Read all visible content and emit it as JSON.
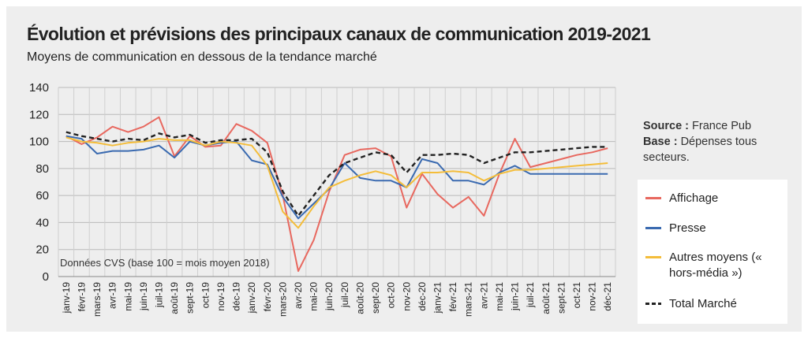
{
  "header": {
    "title": "Évolution et prévisions des principaux canaux de communication 2019-2021",
    "subtitle": "Moyens de communication en dessous de la tendance marché"
  },
  "source": {
    "source_label": "Source :",
    "source_value": "France Pub",
    "base_label": "Base :",
    "base_value": "Dépenses tous secteurs."
  },
  "chart_data": {
    "type": "line",
    "note": "Données CVS (base 100 = mois moyen 2018)",
    "ylim": [
      0,
      140
    ],
    "yticks": [
      0,
      20,
      40,
      60,
      80,
      100,
      120,
      140
    ],
    "grid": true,
    "legend_position": "right",
    "categories": [
      "janv-19",
      "févr-19",
      "mars-19",
      "avr-19",
      "mai-19",
      "juin-19",
      "juil-19",
      "août-19",
      "sept-19",
      "oct-19",
      "nov-19",
      "déc-19",
      "janv-20",
      "févr-20",
      "mars-20",
      "avr-20",
      "mai-20",
      "juin-20",
      "juil-20",
      "août-20",
      "sept-20",
      "oct-20",
      "nov-20",
      "déc-20",
      "janv-21",
      "févr-21",
      "mars-21",
      "avr-21",
      "mai-21",
      "juin-21",
      "juil-21",
      "août-21",
      "sept-21",
      "oct-21",
      "nov-21",
      "déc-21"
    ],
    "series": [
      {
        "name": "Affichage",
        "color": "#e8685f",
        "style": "solid",
        "values": [
          104,
          98,
          103,
          111,
          107,
          111,
          118,
          89,
          104,
          96,
          97,
          113,
          108,
          99,
          60,
          4,
          27,
          63,
          90,
          94,
          95,
          89,
          51,
          76,
          61,
          51,
          59,
          45,
          76,
          102,
          81,
          84,
          87,
          90,
          92,
          95
        ]
      },
      {
        "name": "Presse",
        "color": "#3a6ab0",
        "style": "solid",
        "values": [
          104,
          102,
          91,
          93,
          93,
          94,
          97,
          88,
          100,
          97,
          99,
          100,
          86,
          83,
          59,
          43,
          54,
          65,
          84,
          73,
          71,
          71,
          66,
          87,
          84,
          71,
          71,
          68,
          77,
          82,
          76,
          76,
          76,
          76,
          76,
          76
        ]
      },
      {
        "name": "Autres moyens (« hors-média »)",
        "color": "#f4bd3a",
        "style": "solid",
        "values": [
          103,
          100,
          99,
          97,
          99,
          100,
          102,
          101,
          101,
          97,
          100,
          99,
          97,
          82,
          48,
          36,
          52,
          66,
          71,
          75,
          78,
          75,
          66,
          77,
          77,
          78,
          77,
          71,
          76,
          79,
          79,
          80,
          81,
          82,
          83,
          84
        ]
      },
      {
        "name": "Total Marché",
        "color": "#222222",
        "style": "dashed",
        "values": [
          107,
          104,
          102,
          100,
          102,
          101,
          106,
          103,
          105,
          99,
          101,
          101,
          102,
          92,
          63,
          45,
          60,
          75,
          84,
          88,
          92,
          90,
          77,
          90,
          90,
          91,
          90,
          84,
          88,
          92,
          92,
          93,
          94,
          95,
          96,
          96
        ]
      }
    ]
  }
}
